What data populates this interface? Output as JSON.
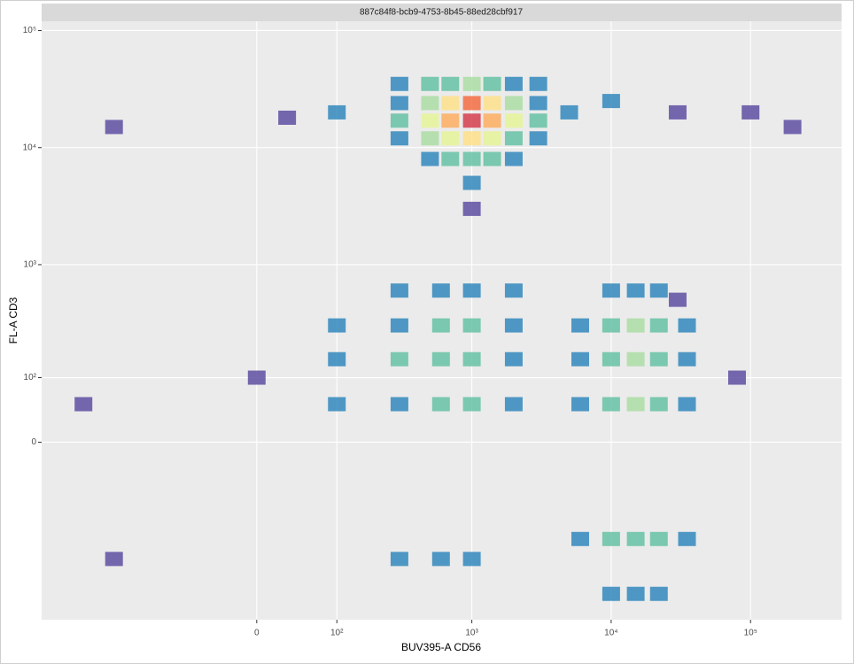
{
  "chart_data": {
    "type": "density2d",
    "strip": "887c84f8-bcb9-4753-8b45-88ed28cbf917",
    "x_label": "BUV395-A CD56",
    "y_label": "FL-A CD3",
    "xlim": [
      -1000,
      450000
    ],
    "ylim": [
      -1000,
      120000
    ],
    "xticks": [
      0,
      {
        "value": 100,
        "label": "10²"
      },
      {
        "value": 1000,
        "label": "10³"
      },
      {
        "value": 10000,
        "label": "10⁴"
      },
      {
        "value": 100000,
        "label": "10⁵"
      }
    ],
    "yticks": [
      0,
      {
        "value": 100,
        "label": "10²"
      },
      {
        "value": 1000,
        "label": "10³"
      },
      {
        "value": 10000,
        "label": "10⁴"
      },
      {
        "value": 100000,
        "label": "10⁵"
      }
    ],
    "grid": true,
    "palette": [
      "#5e4fa2",
      "#3288bd",
      "#66c2a5",
      "#abdda4",
      "#e6f598",
      "#fee08b",
      "#fdae61",
      "#f46d43",
      "#d53e4f"
    ],
    "cells": [
      [
        300,
        35000,
        3
      ],
      [
        500,
        35000,
        8
      ],
      [
        700,
        35000,
        12
      ],
      [
        1000,
        35000,
        15
      ],
      [
        1400,
        35000,
        12
      ],
      [
        2000,
        35000,
        6
      ],
      [
        3000,
        35000,
        3
      ],
      [
        300,
        24000,
        6
      ],
      [
        500,
        24000,
        20
      ],
      [
        700,
        24000,
        45
      ],
      [
        1000,
        24000,
        80
      ],
      [
        1400,
        24000,
        55
      ],
      [
        2000,
        24000,
        20
      ],
      [
        3000,
        24000,
        6
      ],
      [
        300,
        17000,
        8
      ],
      [
        500,
        17000,
        25
      ],
      [
        700,
        17000,
        60
      ],
      [
        1000,
        17000,
        100
      ],
      [
        1400,
        17000,
        70
      ],
      [
        2000,
        17000,
        25
      ],
      [
        3000,
        17000,
        7
      ],
      [
        300,
        12000,
        5
      ],
      [
        500,
        12000,
        15
      ],
      [
        700,
        12000,
        30
      ],
      [
        1000,
        12000,
        40
      ],
      [
        1400,
        12000,
        30
      ],
      [
        2000,
        12000,
        12
      ],
      [
        3000,
        12000,
        4
      ],
      [
        500,
        8000,
        4
      ],
      [
        700,
        8000,
        8
      ],
      [
        1000,
        8000,
        10
      ],
      [
        1400,
        8000,
        8
      ],
      [
        2000,
        8000,
        3
      ],
      [
        100,
        20000,
        2
      ],
      [
        30,
        18000,
        1
      ],
      [
        -300,
        15000,
        1
      ],
      [
        5000,
        20000,
        2
      ],
      [
        10000,
        25000,
        2
      ],
      [
        30000,
        20000,
        1
      ],
      [
        100000,
        20000,
        1
      ],
      [
        200000,
        15000,
        1
      ],
      [
        1000,
        5000,
        2
      ],
      [
        1000,
        3000,
        1
      ],
      [
        300,
        600,
        2
      ],
      [
        600,
        600,
        5
      ],
      [
        1000,
        600,
        6
      ],
      [
        2000,
        600,
        3
      ],
      [
        100,
        300,
        2
      ],
      [
        300,
        300,
        5
      ],
      [
        600,
        300,
        9
      ],
      [
        1000,
        300,
        10
      ],
      [
        2000,
        300,
        4
      ],
      [
        100,
        150,
        3
      ],
      [
        300,
        150,
        7
      ],
      [
        600,
        150,
        12
      ],
      [
        1000,
        150,
        10
      ],
      [
        2000,
        150,
        4
      ],
      [
        100,
        50,
        3
      ],
      [
        300,
        50,
        6
      ],
      [
        600,
        50,
        9
      ],
      [
        1000,
        50,
        7
      ],
      [
        2000,
        50,
        3
      ],
      [
        300,
        -300,
        2
      ],
      [
        600,
        -300,
        4
      ],
      [
        1000,
        -300,
        3
      ],
      [
        10000,
        600,
        3
      ],
      [
        15000,
        600,
        6
      ],
      [
        22000,
        600,
        4
      ],
      [
        6000,
        300,
        5
      ],
      [
        10000,
        300,
        12
      ],
      [
        15000,
        300,
        18
      ],
      [
        22000,
        300,
        12
      ],
      [
        35000,
        300,
        4
      ],
      [
        6000,
        150,
        6
      ],
      [
        10000,
        150,
        14
      ],
      [
        15000,
        150,
        22
      ],
      [
        22000,
        150,
        14
      ],
      [
        35000,
        150,
        4
      ],
      [
        6000,
        50,
        6
      ],
      [
        10000,
        50,
        12
      ],
      [
        15000,
        50,
        15
      ],
      [
        22000,
        50,
        10
      ],
      [
        35000,
        50,
        3
      ],
      [
        6000,
        -200,
        4
      ],
      [
        10000,
        -200,
        9
      ],
      [
        15000,
        -200,
        11
      ],
      [
        22000,
        -200,
        7
      ],
      [
        35000,
        -200,
        2
      ],
      [
        10000,
        -600,
        4
      ],
      [
        15000,
        -600,
        5
      ],
      [
        22000,
        -600,
        3
      ],
      [
        -500,
        50,
        1
      ],
      [
        -300,
        -300,
        1
      ],
      [
        0,
        100,
        1
      ],
      [
        30000,
        500,
        1
      ],
      [
        80000,
        100,
        1
      ]
    ]
  }
}
